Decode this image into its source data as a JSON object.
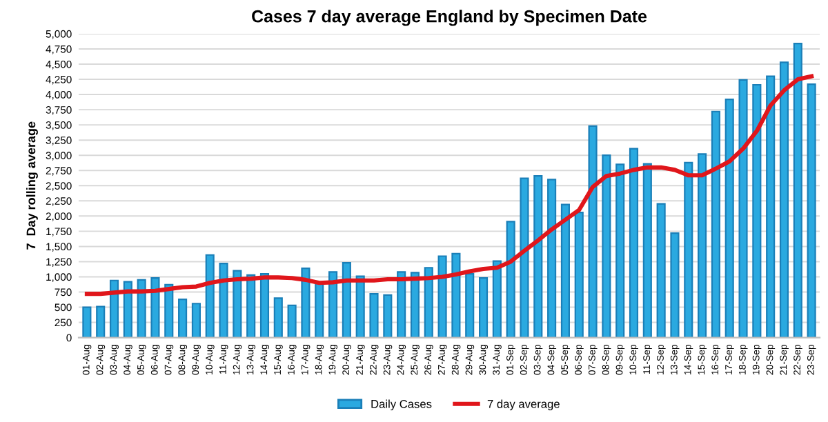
{
  "chart_data": {
    "type": "bar",
    "title": "Cases 7 day average England by Specimen Date",
    "ylabel": "7  Day rolling average",
    "categories": [
      "01-Aug",
      "02-Aug",
      "03-Aug",
      "04-Aug",
      "05-Aug",
      "06-Aug",
      "07-Aug",
      "08-Aug",
      "09-Aug",
      "10-Aug",
      "11-Aug",
      "12-Aug",
      "13-Aug",
      "14-Aug",
      "15-Aug",
      "16-Aug",
      "17-Aug",
      "18-Aug",
      "19-Aug",
      "20-Aug",
      "21-Aug",
      "22-Aug",
      "23-Aug",
      "24-Aug",
      "25-Aug",
      "26-Aug",
      "27-Aug",
      "28-Aug",
      "29-Aug",
      "30-Aug",
      "31-Aug",
      "01-Sep",
      "02-Sep",
      "03-Sep",
      "04-Sep",
      "05-Sep",
      "06-Sep",
      "07-Sep",
      "08-Sep",
      "09-Sep",
      "10-Sep",
      "11-Sep",
      "12-Sep",
      "13-Sep",
      "14-Sep",
      "15-Sep",
      "16-Sep",
      "17-Sep",
      "18-Sep",
      "19-Sep",
      "20-Sep",
      "21-Sep",
      "22-Sep",
      "23-Sep"
    ],
    "series": [
      {
        "name": "Daily Cases",
        "color": "#2aa9e0",
        "values": [
          500,
          510,
          940,
          920,
          950,
          980,
          870,
          630,
          560,
          1360,
          1220,
          1100,
          1030,
          1050,
          650,
          530,
          1140,
          900,
          1080,
          1230,
          1010,
          720,
          700,
          1080,
          1070,
          1150,
          1340,
          1380,
          1050,
          980,
          1260,
          1910,
          2620,
          2660,
          2600,
          2190,
          2060,
          3480,
          3000,
          2850,
          3110,
          2860,
          2200,
          1720,
          2880,
          3020,
          3720,
          3920,
          4240,
          4160,
          4300,
          4530,
          4840,
          4170
        ]
      },
      {
        "name": "7 day average",
        "type": "line",
        "color": "#e0161b",
        "values": [
          720,
          720,
          740,
          760,
          760,
          770,
          800,
          830,
          840,
          900,
          940,
          960,
          970,
          990,
          990,
          980,
          950,
          900,
          910,
          940,
          940,
          940,
          960,
          960,
          970,
          980,
          1000,
          1040,
          1090,
          1130,
          1150,
          1250,
          1430,
          1600,
          1780,
          1940,
          2100,
          2480,
          2660,
          2700,
          2760,
          2800,
          2800,
          2760,
          2670,
          2670,
          2780,
          2900,
          3110,
          3400,
          3820,
          4070,
          4250,
          4300
        ]
      }
    ],
    "ylim": [
      0,
      5000
    ],
    "yticks": [
      {
        "value": 0,
        "label": "0"
      },
      {
        "value": 250,
        "label": "250"
      },
      {
        "value": 500,
        "label": "500"
      },
      {
        "value": 750,
        "label": "750"
      },
      {
        "value": 1000,
        "label": "1,000"
      },
      {
        "value": 1250,
        "label": "1,250"
      },
      {
        "value": 1500,
        "label": "1,500"
      },
      {
        "value": 1750,
        "label": "1,750"
      },
      {
        "value": 2000,
        "label": "2,000"
      },
      {
        "value": 2250,
        "label": "2,250"
      },
      {
        "value": 2500,
        "label": "2,500"
      },
      {
        "value": 2750,
        "label": "2,750"
      },
      {
        "value": 3000,
        "label": "3,000"
      },
      {
        "value": 3250,
        "label": "3,250"
      },
      {
        "value": 3500,
        "label": "3,500"
      },
      {
        "value": 3750,
        "label": "3,750"
      },
      {
        "value": 4000,
        "label": "4,000"
      },
      {
        "value": 4250,
        "label": "4,250"
      },
      {
        "value": 4500,
        "label": "4,500"
      },
      {
        "value": 4750,
        "label": "4,750"
      },
      {
        "value": 5000,
        "label": "5,000"
      }
    ],
    "grid": "y",
    "legend": "bottom"
  }
}
